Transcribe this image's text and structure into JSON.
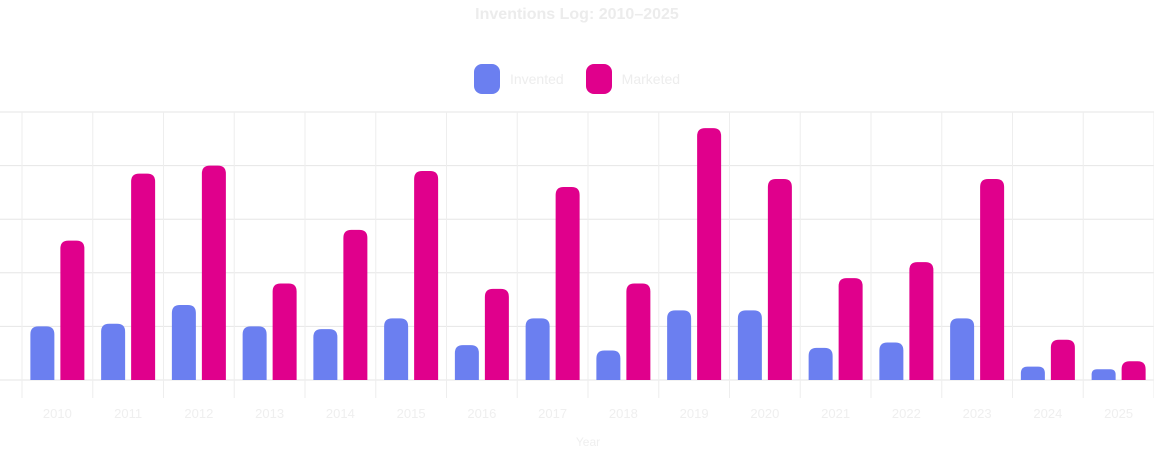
{
  "chart_data": {
    "type": "bar",
    "title": "Inventions Log: 2010–2025",
    "xlabel": "Year",
    "categories": [
      "2010",
      "2011",
      "2012",
      "2013",
      "2014",
      "2015",
      "2016",
      "2017",
      "2018",
      "2019",
      "2020",
      "2021",
      "2022",
      "2023",
      "2024",
      "2025"
    ],
    "series": [
      {
        "name": "Invented",
        "color": "#6b7ff0",
        "values": [
          10,
          10.5,
          14,
          10,
          9.5,
          11.5,
          6.5,
          11.5,
          5.5,
          13,
          13,
          6,
          7,
          11.5,
          2.5,
          2
        ]
      },
      {
        "name": "Marketed",
        "color": "#e0008c",
        "values": [
          26,
          38.5,
          40,
          18,
          28,
          39,
          17,
          36,
          18,
          47,
          37.5,
          19,
          22,
          37.5,
          7.5,
          3.5
        ]
      }
    ],
    "ylim": [
      0,
      50
    ],
    "grid": true,
    "legend": "top-center"
  }
}
